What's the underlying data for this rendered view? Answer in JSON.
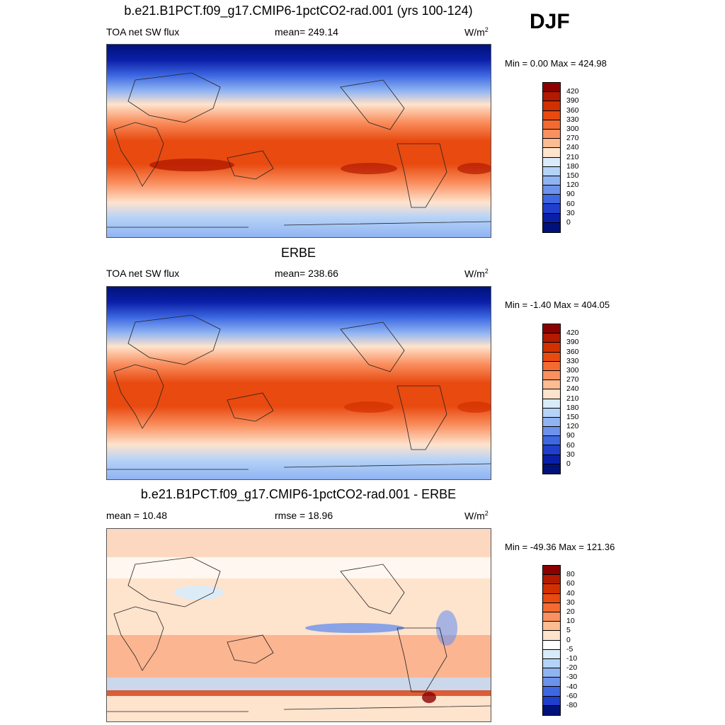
{
  "season": "DJF",
  "panels": [
    {
      "title": "b.e21.B1PCT.f09_g17.CMIP6-1pctCO2-rad.001 (yrs 100-124)",
      "left_label": "TOA net SW flux",
      "center_label": "mean= 249.14",
      "units_base": "W/m",
      "units_exp": "2",
      "minmax": "Min =   0.00 Max = 424.98",
      "colorbar": {
        "labels": [
          "420",
          "390",
          "360",
          "330",
          "300",
          "270",
          "240",
          "210",
          "180",
          "150",
          "120",
          "90",
          "60",
          "30",
          "0"
        ],
        "colors": [
          "#8b0000",
          "#b31a00",
          "#d23000",
          "#e84a10",
          "#f46a30",
          "#fa9060",
          "#fdbb92",
          "#fee3cd",
          "#d8ebfb",
          "#b5d2f7",
          "#90b4f2",
          "#6c92ec",
          "#3d68e2",
          "#1f3fcc",
          "#0a1fa8",
          "#00127a"
        ]
      }
    },
    {
      "title": "ERBE",
      "left_label": "TOA net SW flux",
      "center_label": "mean= 238.66",
      "units_base": "W/m",
      "units_exp": "2",
      "minmax": "Min =  -1.40 Max = 404.05",
      "colorbar": {
        "labels": [
          "420",
          "390",
          "360",
          "330",
          "300",
          "270",
          "240",
          "210",
          "180",
          "150",
          "120",
          "90",
          "60",
          "30",
          "0"
        ],
        "colors": [
          "#8b0000",
          "#b31a00",
          "#d23000",
          "#e84a10",
          "#f46a30",
          "#fa9060",
          "#fdbb92",
          "#fee3cd",
          "#d8ebfb",
          "#b5d2f7",
          "#90b4f2",
          "#6c92ec",
          "#3d68e2",
          "#1f3fcc",
          "#0a1fa8",
          "#00127a"
        ]
      }
    },
    {
      "title": "b.e21.B1PCT.f09_g17.CMIP6-1pctCO2-rad.001 - ERBE",
      "left_label": "mean =  10.48",
      "center_label": "rmse =  18.96",
      "units_base": "W/m",
      "units_exp": "2",
      "minmax": "Min = -49.36 Max = 121.36",
      "colorbar": {
        "labels": [
          "80",
          "60",
          "40",
          "30",
          "20",
          "10",
          "5",
          "0",
          "-5",
          "-10",
          "-20",
          "-30",
          "-40",
          "-60",
          "-80"
        ],
        "colors": [
          "#8b0000",
          "#b31a00",
          "#d23000",
          "#e84a10",
          "#f46a30",
          "#fa9060",
          "#fdbb92",
          "#fee3cd",
          "#ffffff",
          "#d8ebfb",
          "#b5d2f7",
          "#90b4f2",
          "#6c92ec",
          "#3d68e2",
          "#1f3fcc",
          "#00127a"
        ]
      }
    }
  ]
}
